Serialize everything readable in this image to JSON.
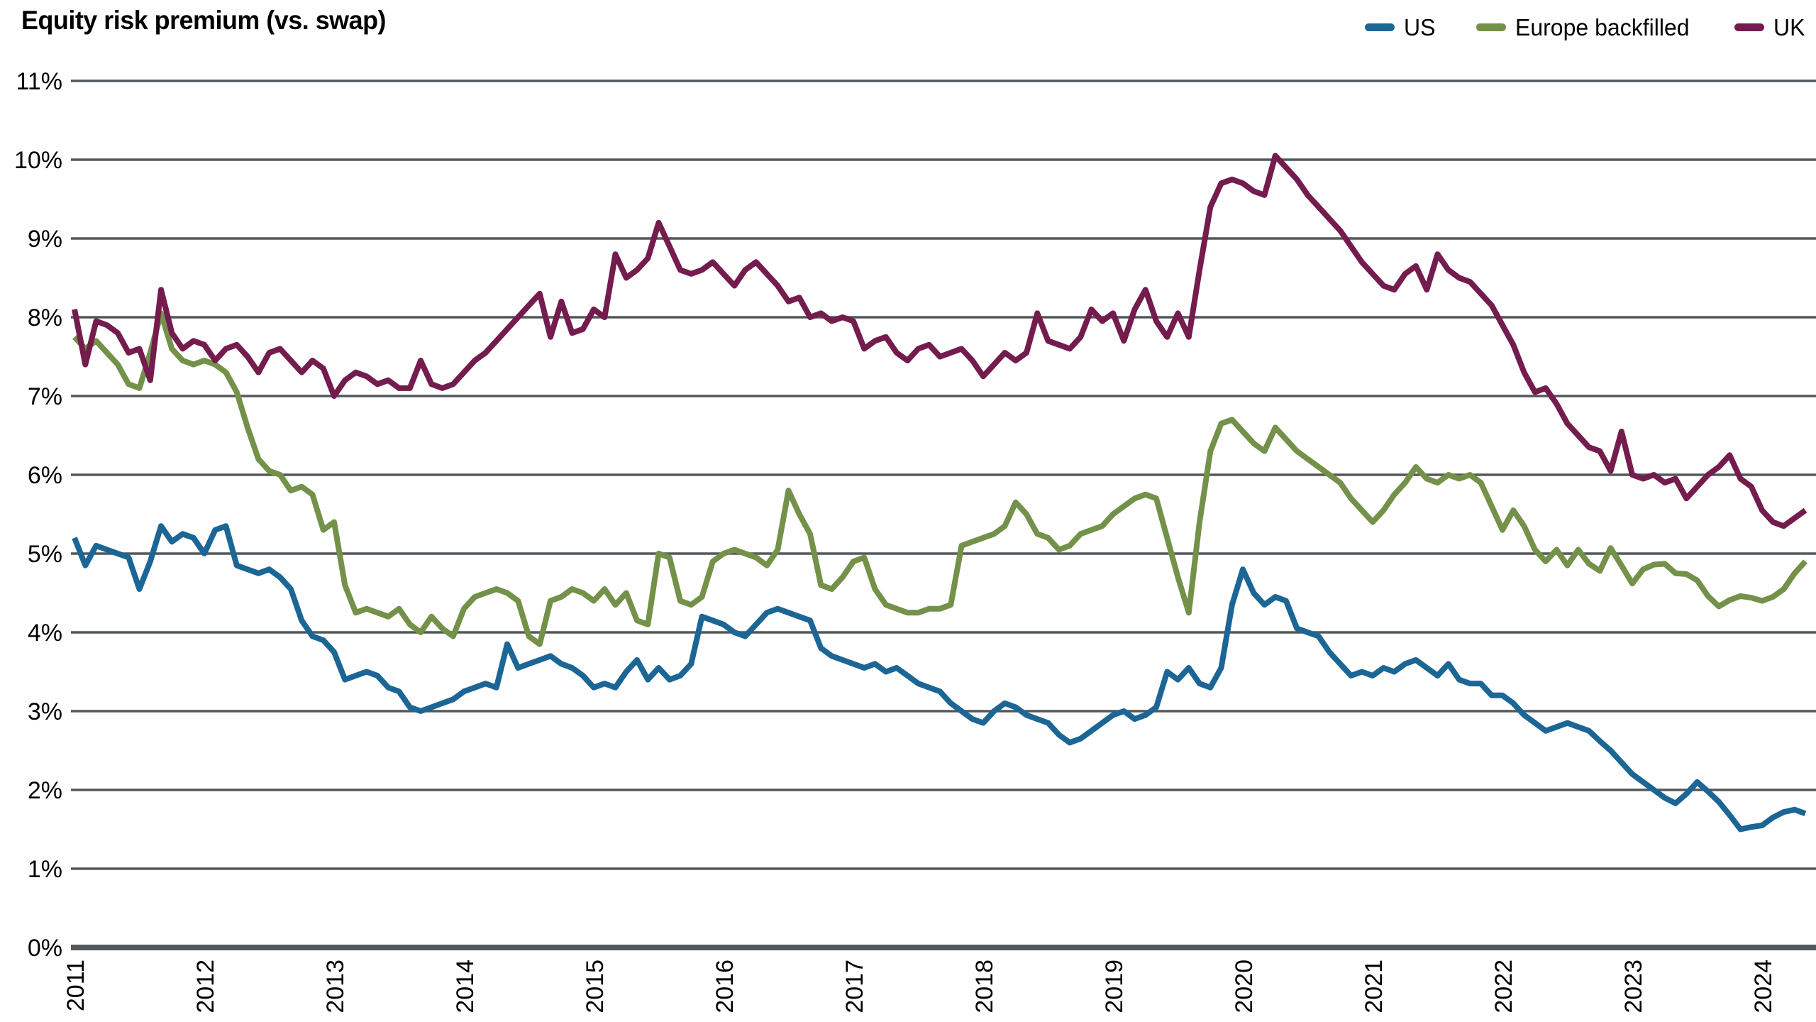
{
  "title": "Equity risk premium (vs. swap)",
  "legend": {
    "items": [
      {
        "label": "US",
        "color": "#1C6695"
      },
      {
        "label": "Europe backfilled",
        "color": "#74914A"
      },
      {
        "label": "UK",
        "color": "#731C4D"
      }
    ]
  },
  "colors": {
    "us": "#1C6695",
    "europe": "#74914A",
    "uk": "#731C4D",
    "gridline": "#54585a",
    "text": "#000000",
    "background": "#ffffff"
  },
  "chart_data": {
    "type": "line",
    "title": "Equity risk premium (vs. swap)",
    "frequency": "monthly",
    "x_start": "2011-01",
    "x_end": "2024-05",
    "x_tick_labels": [
      "2011",
      "2012",
      "2013",
      "2014",
      "2015",
      "2016",
      "2017",
      "2018",
      "2019",
      "2020",
      "2021",
      "2022",
      "2023",
      "2024"
    ],
    "y_tick_labels": [
      "0%",
      "1%",
      "2%",
      "3%",
      "4%",
      "5%",
      "6%",
      "7%",
      "8%",
      "9%",
      "10%",
      "11%"
    ],
    "ylim": [
      0,
      11
    ],
    "y_unit": "%",
    "grid": "horizontal",
    "legend_position": "top-right",
    "series": [
      {
        "name": "US",
        "color": "#1C6695",
        "values": [
          5.2,
          4.85,
          5.1,
          5.05,
          5.0,
          4.95,
          4.55,
          4.9,
          5.35,
          5.15,
          5.25,
          5.2,
          5.0,
          5.3,
          5.35,
          4.85,
          4.8,
          4.75,
          4.8,
          4.7,
          4.55,
          4.15,
          3.95,
          3.9,
          3.75,
          3.4,
          3.45,
          3.5,
          3.45,
          3.3,
          3.25,
          3.05,
          3.0,
          3.05,
          3.1,
          3.15,
          3.25,
          3.3,
          3.35,
          3.3,
          3.85,
          3.55,
          3.6,
          3.65,
          3.7,
          3.6,
          3.55,
          3.45,
          3.3,
          3.35,
          3.3,
          3.5,
          3.65,
          3.4,
          3.55,
          3.4,
          3.45,
          3.6,
          4.2,
          4.15,
          4.1,
          4.0,
          3.95,
          4.1,
          4.25,
          4.3,
          4.25,
          4.2,
          4.15,
          3.8,
          3.7,
          3.65,
          3.6,
          3.55,
          3.6,
          3.5,
          3.55,
          3.45,
          3.35,
          3.3,
          3.25,
          3.1,
          3.0,
          2.9,
          2.85,
          3.0,
          3.1,
          3.05,
          2.95,
          2.9,
          2.85,
          2.7,
          2.6,
          2.65,
          2.75,
          2.85,
          2.95,
          3.0,
          2.9,
          2.95,
          3.05,
          3.5,
          3.4,
          3.55,
          3.35,
          3.3,
          3.55,
          4.35,
          4.8,
          4.5,
          4.35,
          4.45,
          4.4,
          4.05,
          4.0,
          3.95,
          3.75,
          3.6,
          3.45,
          3.5,
          3.45,
          3.55,
          3.5,
          3.6,
          3.65,
          3.55,
          3.45,
          3.6,
          3.4,
          3.35,
          3.35,
          3.2,
          3.2,
          3.1,
          2.95,
          2.85,
          2.75,
          2.8,
          2.85,
          2.8,
          2.75,
          2.62,
          2.5,
          2.35,
          2.2,
          2.1,
          2.0,
          1.9,
          1.83,
          1.95,
          2.1,
          1.98,
          1.85,
          1.68,
          1.5,
          1.53,
          1.55,
          1.65,
          1.72,
          1.75,
          1.7
        ]
      },
      {
        "name": "Europe backfilled",
        "color": "#74914A",
        "values": [
          7.75,
          7.6,
          7.7,
          7.55,
          7.4,
          7.15,
          7.1,
          7.55,
          8.05,
          7.6,
          7.45,
          7.4,
          7.45,
          7.4,
          7.3,
          7.05,
          6.6,
          6.2,
          6.05,
          6.0,
          5.8,
          5.85,
          5.75,
          5.3,
          5.4,
          4.6,
          4.25,
          4.3,
          4.25,
          4.2,
          4.3,
          4.1,
          4.0,
          4.2,
          4.05,
          3.95,
          4.3,
          4.45,
          4.5,
          4.55,
          4.5,
          4.4,
          3.95,
          3.85,
          4.4,
          4.45,
          4.55,
          4.5,
          4.4,
          4.55,
          4.35,
          4.5,
          4.15,
          4.1,
          5.0,
          4.95,
          4.4,
          4.35,
          4.45,
          4.9,
          5.0,
          5.05,
          5.0,
          4.95,
          4.85,
          5.05,
          5.8,
          5.5,
          5.25,
          4.6,
          4.55,
          4.7,
          4.9,
          4.95,
          4.55,
          4.35,
          4.3,
          4.25,
          4.25,
          4.3,
          4.3,
          4.35,
          5.1,
          5.15,
          5.2,
          5.25,
          5.35,
          5.65,
          5.5,
          5.25,
          5.2,
          5.05,
          5.1,
          5.25,
          5.3,
          5.35,
          5.5,
          5.6,
          5.7,
          5.75,
          5.7,
          5.2,
          4.7,
          4.25,
          5.4,
          6.3,
          6.65,
          6.7,
          6.55,
          6.4,
          6.3,
          6.6,
          6.45,
          6.3,
          6.2,
          6.1,
          6.0,
          5.9,
          5.7,
          5.55,
          5.4,
          5.55,
          5.75,
          5.9,
          6.1,
          5.95,
          5.9,
          6.0,
          5.95,
          6.0,
          5.9,
          5.6,
          5.3,
          5.55,
          5.35,
          5.05,
          4.9,
          5.05,
          4.85,
          5.05,
          4.87,
          4.78,
          5.07,
          4.85,
          4.62,
          4.8,
          4.86,
          4.87,
          4.75,
          4.74,
          4.66,
          4.46,
          4.33,
          4.41,
          4.46,
          4.44,
          4.4,
          4.45,
          4.55,
          4.75,
          4.9
        ]
      },
      {
        "name": "UK",
        "color": "#731C4D",
        "values": [
          8.1,
          7.4,
          7.95,
          7.9,
          7.8,
          7.55,
          7.6,
          7.2,
          8.35,
          7.8,
          7.6,
          7.7,
          7.65,
          7.45,
          7.6,
          7.65,
          7.5,
          7.3,
          7.55,
          7.6,
          7.45,
          7.3,
          7.45,
          7.35,
          7.0,
          7.2,
          7.3,
          7.25,
          7.15,
          7.2,
          7.1,
          7.1,
          7.45,
          7.15,
          7.1,
          7.15,
          7.3,
          7.45,
          7.55,
          7.7,
          7.85,
          8.0,
          8.15,
          8.3,
          7.75,
          8.2,
          7.8,
          7.85,
          8.1,
          8.0,
          8.8,
          8.5,
          8.6,
          8.75,
          9.2,
          8.9,
          8.6,
          8.55,
          8.6,
          8.7,
          8.55,
          8.4,
          8.6,
          8.7,
          8.55,
          8.4,
          8.2,
          8.25,
          8.0,
          8.05,
          7.95,
          8.0,
          7.95,
          7.6,
          7.7,
          7.75,
          7.55,
          7.45,
          7.6,
          7.65,
          7.5,
          7.55,
          7.6,
          7.45,
          7.25,
          7.4,
          7.55,
          7.45,
          7.55,
          8.05,
          7.7,
          7.65,
          7.6,
          7.75,
          8.1,
          7.95,
          8.05,
          7.7,
          8.1,
          8.35,
          7.95,
          7.75,
          8.05,
          7.75,
          8.6,
          9.4,
          9.7,
          9.75,
          9.7,
          9.6,
          9.55,
          10.05,
          9.9,
          9.75,
          9.55,
          9.4,
          9.25,
          9.1,
          8.9,
          8.7,
          8.55,
          8.4,
          8.35,
          8.55,
          8.65,
          8.35,
          8.8,
          8.6,
          8.5,
          8.45,
          8.3,
          8.15,
          7.9,
          7.65,
          7.3,
          7.05,
          7.1,
          6.9,
          6.65,
          6.5,
          6.35,
          6.3,
          6.05,
          6.55,
          6.0,
          5.95,
          6.0,
          5.9,
          5.95,
          5.7,
          5.85,
          6.0,
          6.1,
          6.25,
          5.95,
          5.85,
          5.55,
          5.4,
          5.35,
          5.45,
          5.55
        ]
      }
    ]
  }
}
